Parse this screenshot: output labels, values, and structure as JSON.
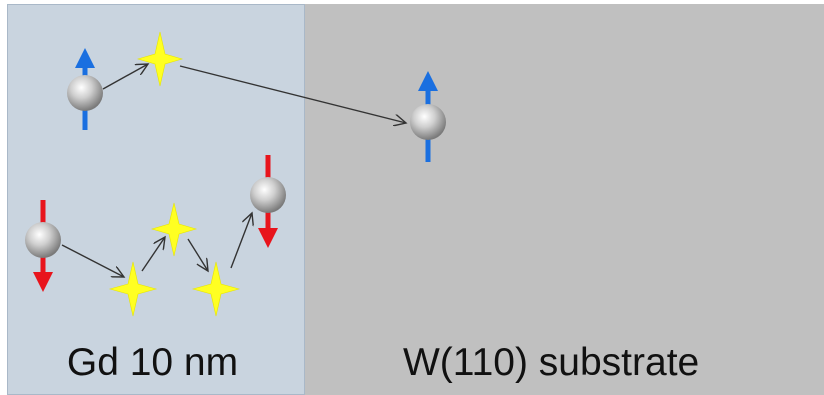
{
  "layers": {
    "gd": {
      "label": "Gd 10 nm",
      "color": "#c9d4df"
    },
    "w": {
      "label": "W(110)  substrate",
      "color": "#c0c0c0"
    }
  },
  "colors": {
    "spin_up": "#1a6fe0",
    "spin_down": "#e8141c",
    "star": "#ffff22",
    "arrow": "#333333",
    "electron": "#b8b8b8"
  },
  "icons": [
    "electron-sphere-icon",
    "spin-up-arrow-icon",
    "spin-down-arrow-icon",
    "scattering-star-icon"
  ]
}
